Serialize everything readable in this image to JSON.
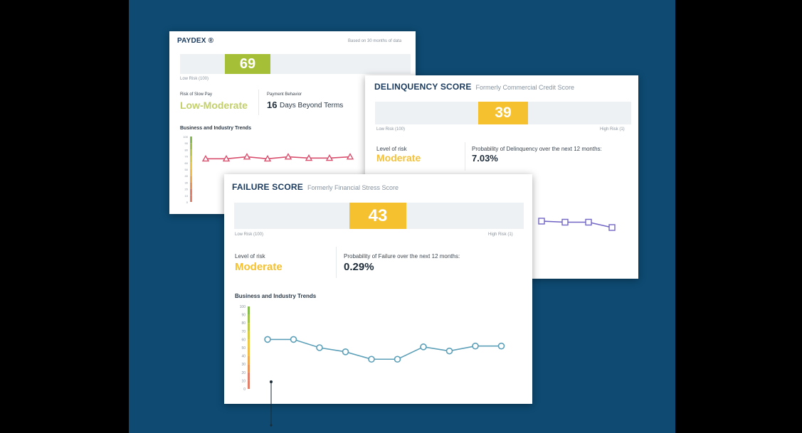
{
  "paydex": {
    "title": "PAYDEX ®",
    "basis_note": "Based on 30 months of data",
    "score": "69",
    "low_risk_label": "Low Risk (100)",
    "slow_pay_label": "Risk of Slow Pay",
    "slow_pay_value": "Low-Moderate",
    "payment_behavior_label": "Payment Behavior",
    "payment_days": "16",
    "payment_suffix": "Days Beyond Terms",
    "trends_title": "Business and Industry Trends",
    "badge_color": "#a5bf36",
    "line_color": "#d9506e",
    "y_ticks": [
      "100",
      "90",
      "80",
      "70",
      "60",
      "50",
      "40",
      "30",
      "20",
      "10",
      "0"
    ],
    "trend": [
      66,
      66,
      69,
      66,
      69,
      67,
      67,
      69
    ]
  },
  "delinquency": {
    "title": "DELINQUENCY SCORE",
    "subtitle": "Formerly Commercial Credit Score",
    "score": "39",
    "low_risk_label": "Low Risk (100)",
    "high_risk_label": "High Risk (1)",
    "level_label": "Level of risk",
    "level_value": "Moderate",
    "prob_label": "Probability of Delinquency over the next 12 months:",
    "prob_value": "7.03%",
    "badge_color": "#f5c12f",
    "line_color": "#7166c6",
    "trend": [
      50,
      49,
      49,
      44
    ]
  },
  "failure": {
    "title": "FAILURE SCORE",
    "subtitle": "Formerly Financial Stress Score",
    "score": "43",
    "low_risk_label": "Low Risk (100)",
    "high_risk_label": "High Risk (1)",
    "level_label": "Level of risk",
    "level_value": "Moderate",
    "prob_label": "Probability of Failure over the next 12 months:",
    "prob_value": "0.29%",
    "trends_title": "Business and Industry Trends",
    "badge_color": "#f5c12f",
    "level_color": "#f5c12f",
    "line_color": "#5b9fb8",
    "y_ticks": [
      "100",
      "90",
      "80",
      "70",
      "60",
      "50",
      "40",
      "30",
      "20",
      "10",
      "0"
    ],
    "trend": [
      60,
      60,
      50,
      45,
      36,
      36,
      51,
      46,
      52,
      52
    ]
  }
}
